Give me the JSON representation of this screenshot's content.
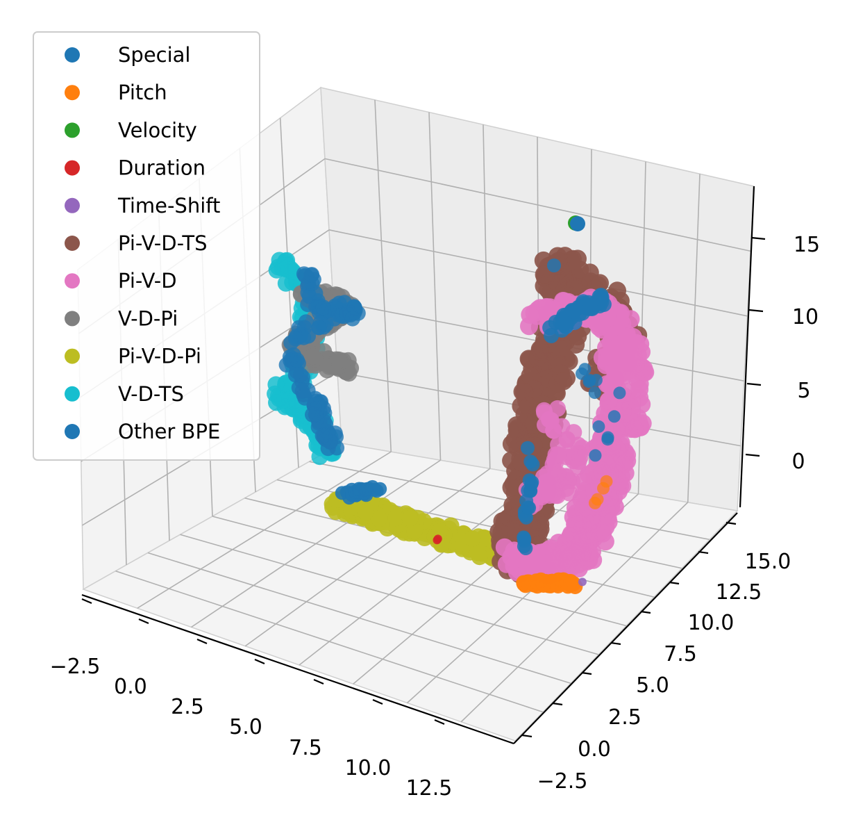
{
  "chart_data": {
    "type": "scatter",
    "projection": "3d",
    "title": "",
    "xlabel": "",
    "ylabel": "",
    "zlabel": "",
    "grid": true,
    "legend_placement": "top-left",
    "x_ticks": [
      "−2.5",
      "0.0",
      "2.5",
      "5.0",
      "7.5",
      "10.0",
      "12.5"
    ],
    "y_ticks": [
      "−2.5",
      "0.0",
      "2.5",
      "5.0",
      "7.5",
      "10.0",
      "12.5",
      "15.0"
    ],
    "z_ticks": [
      "0",
      "5",
      "10",
      "15"
    ],
    "xlim": [
      -3.5,
      15
    ],
    "ylim": [
      -3.5,
      16
    ],
    "zlim": [
      -3,
      17
    ],
    "series": [
      {
        "name": "Special",
        "color": "#1f77b4",
        "approx_points": [
          [
            9.6,
            9.8,
            16.2
          ]
        ]
      },
      {
        "name": "Pitch",
        "color": "#ff7f0e",
        "approx_points": [
          [
            9.0,
            2.0,
            -2.2
          ],
          [
            10.0,
            2.5,
            -2.1
          ],
          [
            11.0,
            3.0,
            -2.2
          ]
        ]
      },
      {
        "name": "Velocity",
        "color": "#2ca02c",
        "approx_points": [
          [
            9.6,
            9.8,
            16.3
          ]
        ]
      },
      {
        "name": "Duration",
        "color": "#d62728",
        "approx_points": [
          [
            7.0,
            1.0,
            0.5
          ]
        ]
      },
      {
        "name": "Time-Shift",
        "color": "#9467bd",
        "approx_points": [
          [
            11.2,
            3.2,
            -2.0
          ]
        ]
      },
      {
        "name": "Pi-V-D-TS",
        "color": "#8c564b",
        "approx_points": [
          [
            9.0,
            5.0,
            2.0
          ],
          [
            9.5,
            8.0,
            10.0
          ],
          [
            10.0,
            10.0,
            13.0
          ]
        ]
      },
      {
        "name": "Pi-V-D",
        "color": "#e377c2",
        "approx_points": [
          [
            9.5,
            4.0,
            0.0
          ],
          [
            10.5,
            7.0,
            6.0
          ],
          [
            11.0,
            9.0,
            10.0
          ]
        ]
      },
      {
        "name": "V-D-Pi",
        "color": "#7f7f7f",
        "approx_points": [
          [
            -0.5,
            6.0,
            8.0
          ],
          [
            0.5,
            7.0,
            11.0
          ]
        ]
      },
      {
        "name": "Pi-V-D-Pi",
        "color": "#bcbd22",
        "approx_points": [
          [
            2.0,
            3.0,
            2.0
          ],
          [
            5.0,
            2.0,
            1.0
          ],
          [
            8.0,
            1.0,
            0.0
          ]
        ]
      },
      {
        "name": "V-D-TS",
        "color": "#17becf",
        "approx_points": [
          [
            -1.0,
            5.0,
            6.0
          ],
          [
            -0.5,
            7.0,
            12.0
          ]
        ]
      },
      {
        "name": "Other BPE",
        "color": "#1f77b4",
        "approx_points": [
          [
            0.0,
            6.0,
            8.0
          ],
          [
            3.0,
            3.0,
            2.0
          ],
          [
            9.5,
            7.0,
            10.0
          ]
        ]
      }
    ]
  }
}
